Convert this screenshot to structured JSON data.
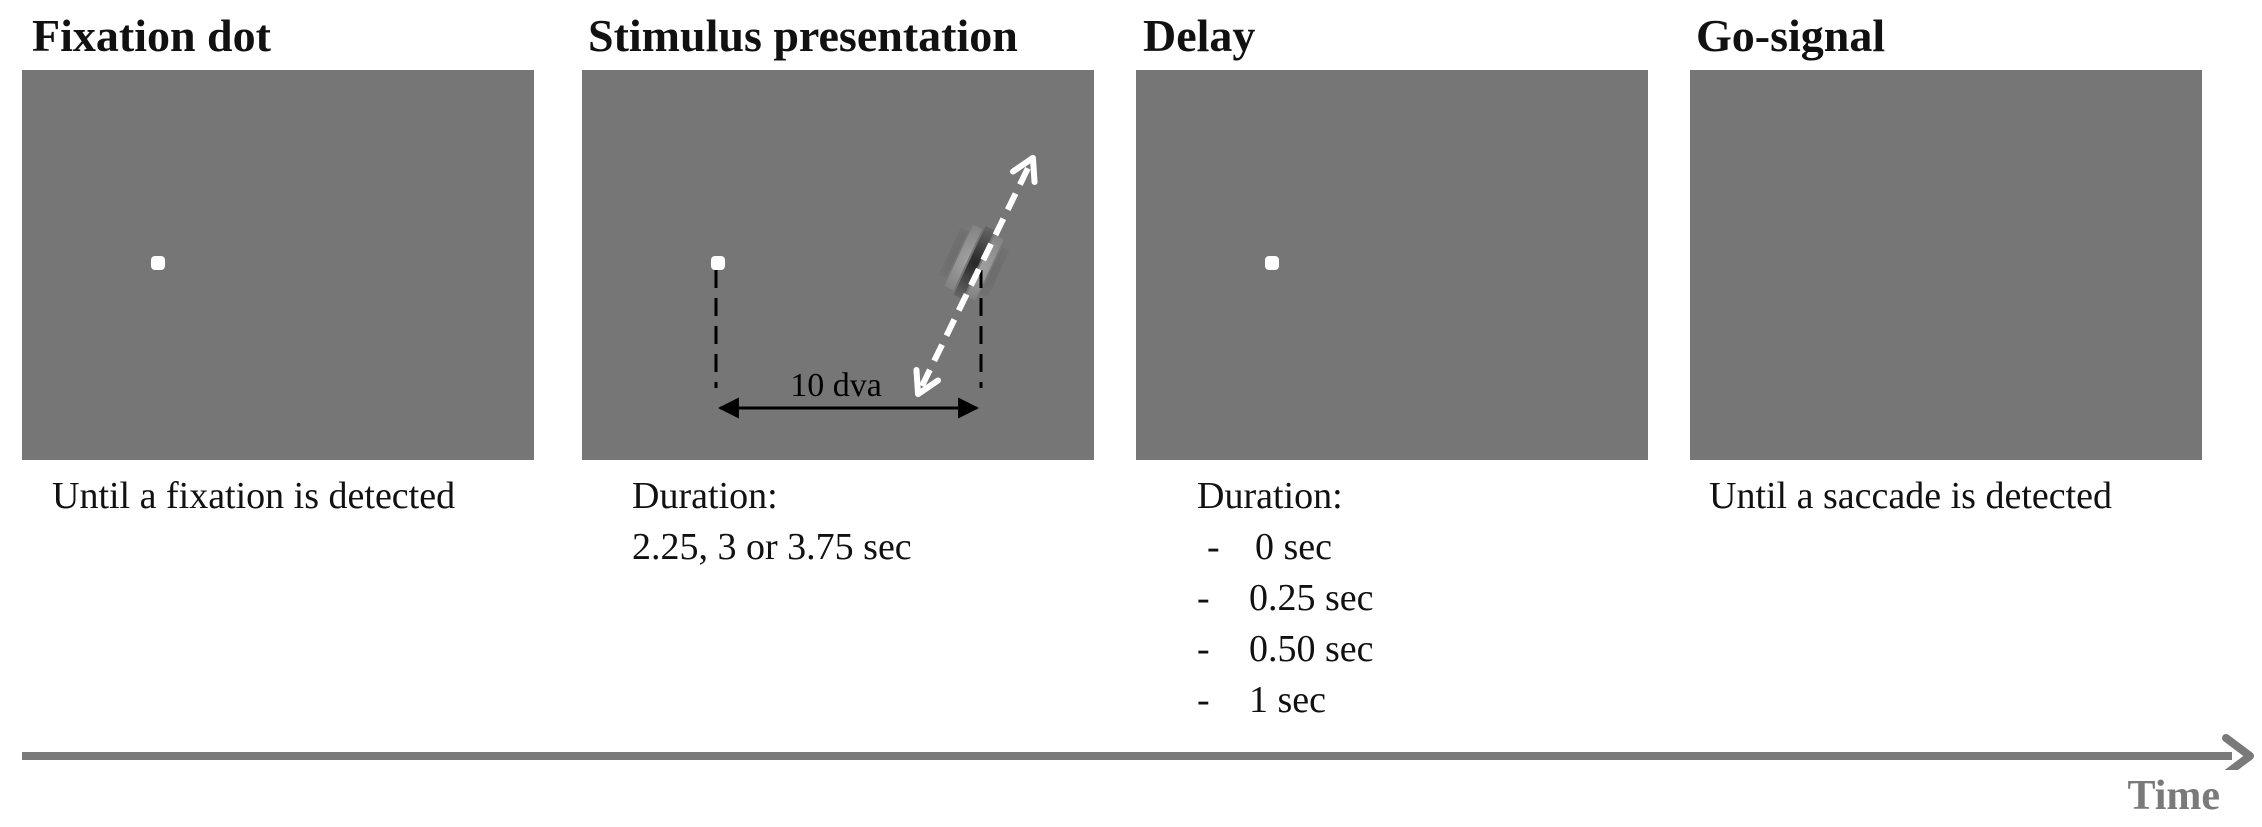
{
  "panels": [
    {
      "title": "Fixation dot",
      "caption": "Until a fixation is detected"
    },
    {
      "title": "Stimulus presentation",
      "caption_heading": "Duration:",
      "caption_line": "2.25, 3 or 3.75 sec",
      "distance_label": "10 dva"
    },
    {
      "title": "Delay",
      "caption_heading": "Duration:",
      "durations": [
        {
          "dash": "-",
          "value": "0 sec"
        },
        {
          "dash": "-",
          "value": "0.25 sec"
        },
        {
          "dash": "-",
          "value": "0.50 sec"
        },
        {
          "dash": "-",
          "value": "1 sec"
        }
      ]
    },
    {
      "title": "Go-signal",
      "caption": "Until a saccade is detected"
    }
  ],
  "timeline": {
    "label": "Time",
    "color": "#7a7a7a"
  },
  "colors": {
    "screen_background": "#767676",
    "fixation_dot": "#ffffff"
  }
}
